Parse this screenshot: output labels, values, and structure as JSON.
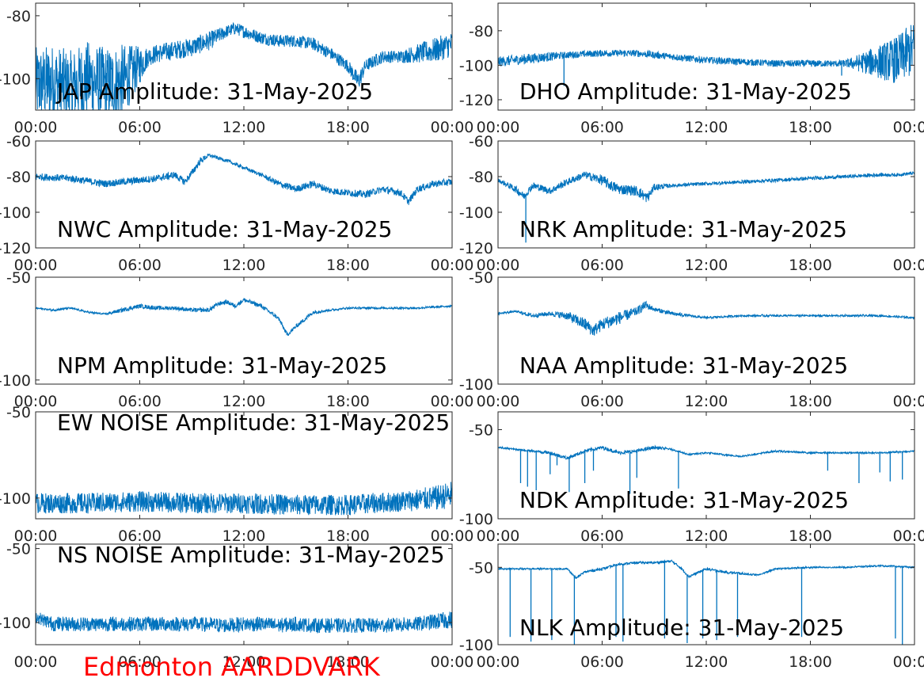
{
  "station_label": "Edmonton AARDDVARK",
  "station_color": "#ff0000",
  "series_color": "#0072bd",
  "chart_data": [
    {
      "type": "line",
      "title": "JAP Amplitude: 31-May-2025",
      "xticks": [
        "00:00",
        "06:00",
        "12:00",
        "18:00",
        "00:00"
      ],
      "yticks": [
        "-80",
        "-100"
      ],
      "yticks_values": [
        -80,
        -100
      ],
      "ylim": [
        -110,
        -76
      ],
      "trace": {
        "x_hours": [
          0,
          1,
          2,
          3,
          4,
          5,
          6.5,
          7,
          8,
          9,
          10,
          11,
          11.5,
          12,
          13,
          14,
          15,
          16,
          17,
          18,
          18.6,
          19,
          20,
          21,
          22,
          23,
          24
        ],
        "y": [
          -102,
          -101,
          -103,
          -100,
          -102,
          -101,
          -93,
          -92,
          -91,
          -90,
          -88,
          -85,
          -84,
          -85,
          -87,
          -88,
          -88,
          -89,
          -92,
          -96,
          -101,
          -96,
          -93,
          -93,
          -92,
          -91,
          -89
        ],
        "noise": [
          12,
          12,
          12,
          12,
          12,
          12,
          3,
          3,
          3,
          3,
          3,
          2,
          2,
          2,
          2,
          2,
          2,
          2,
          2,
          2,
          3,
          2,
          2,
          2,
          3,
          4,
          4
        ]
      },
      "spikes": []
    },
    {
      "type": "line",
      "title": "DHO Amplitude: 31-May-2025",
      "xticks": [
        "00:00",
        "06:00",
        "12:00",
        "18:00",
        "00:00"
      ],
      "yticks": [
        "-80",
        "-100",
        "-120"
      ],
      "yticks_values": [
        -80,
        -100,
        -120
      ],
      "ylim": [
        -126,
        -64
      ],
      "trace": {
        "x_hours": [
          0,
          2,
          4,
          6,
          8,
          10,
          12,
          14,
          16,
          18,
          20,
          22,
          23,
          24
        ],
        "y": [
          -98,
          -96,
          -94,
          -93,
          -93,
          -95,
          -97,
          -98,
          -99,
          -99,
          -99,
          -98,
          -97,
          -90
        ],
        "noise": [
          3,
          3,
          2,
          2,
          2,
          2,
          2,
          2,
          2,
          2,
          2,
          10,
          14,
          16
        ]
      },
      "spikes": [
        [
          3.8,
          -112
        ],
        [
          19.8,
          -106
        ]
      ]
    },
    {
      "type": "line",
      "title": "NWC Amplitude: 31-May-2025",
      "xticks": [
        "00:00",
        "06:00",
        "12:00",
        "18:00",
        "00:00"
      ],
      "yticks": [
        "-60",
        "-80",
        "-100",
        "-120"
      ],
      "yticks_values": [
        -60,
        -80,
        -100,
        -120
      ],
      "ylim": [
        -120,
        -60
      ],
      "trace": {
        "x_hours": [
          0,
          2,
          4,
          5,
          6,
          7,
          8,
          8.6,
          9,
          9.5,
          10,
          11,
          12,
          13,
          14,
          15,
          16,
          17,
          18,
          19,
          20,
          21,
          21.5,
          22,
          23,
          24
        ],
        "y": [
          -80,
          -81,
          -84,
          -83,
          -82,
          -81,
          -79,
          -83,
          -78,
          -71,
          -68,
          -71,
          -75,
          -79,
          -84,
          -87,
          -84,
          -88,
          -89,
          -90,
          -87,
          -89,
          -94,
          -87,
          -84,
          -83
        ],
        "noise": [
          2,
          2,
          2,
          2,
          2,
          2,
          2,
          2,
          2,
          2,
          1,
          1,
          1,
          1,
          2,
          2,
          2,
          2,
          2,
          2,
          2,
          2,
          2,
          2,
          2,
          2
        ]
      },
      "spikes": []
    },
    {
      "type": "line",
      "title": "NRK Amplitude: 31-May-2025",
      "xticks": [
        "00:00",
        "06:00",
        "12:00",
        "18:00",
        "00:00"
      ],
      "yticks": [
        "-60",
        "-80",
        "-100",
        "-120"
      ],
      "yticks_values": [
        -60,
        -80,
        -100,
        -120
      ],
      "ylim": [
        -120,
        -60
      ],
      "trace": {
        "x_hours": [
          0,
          1,
          1.5,
          2,
          3,
          4,
          5,
          6,
          6.5,
          7,
          8,
          8.6,
          9,
          10,
          12,
          14,
          16,
          18,
          20,
          22,
          23,
          24
        ],
        "y": [
          -82,
          -87,
          -91,
          -85,
          -88,
          -83,
          -79,
          -82,
          -85,
          -87,
          -88,
          -92,
          -86,
          -85,
          -84,
          -83,
          -82,
          -81,
          -80,
          -79,
          -79,
          -78
        ],
        "noise": [
          1,
          2,
          2,
          2,
          2,
          2,
          2,
          3,
          3,
          3,
          3,
          3,
          2,
          1,
          1,
          1,
          1,
          1,
          1,
          1,
          1,
          1
        ]
      },
      "spikes": [
        [
          1.6,
          -117
        ]
      ]
    },
    {
      "type": "line",
      "title": "NPM Amplitude: 31-May-2025",
      "xticks": [
        "00:00",
        "06:00",
        "12:00",
        "18:00",
        "00:00"
      ],
      "yticks": [
        "-50",
        "-100"
      ],
      "yticks_values": [
        -50,
        -100
      ],
      "ylim": [
        -102,
        -50
      ],
      "trace": {
        "x_hours": [
          0,
          1,
          2,
          3,
          4,
          5,
          6,
          7,
          8,
          9,
          10,
          10.5,
          11,
          11.5,
          12,
          13,
          14,
          14.5,
          15,
          16,
          17,
          18,
          20,
          22,
          24
        ],
        "y": [
          -65,
          -66,
          -65,
          -67,
          -68,
          -66,
          -64,
          -65,
          -65,
          -66,
          -66,
          -63,
          -62,
          -64,
          -61,
          -64,
          -70,
          -78,
          -74,
          -67,
          -66,
          -65,
          -65,
          -65,
          -64
        ],
        "noise": [
          0.5,
          0.5,
          0.5,
          0.5,
          0.5,
          1,
          1,
          1,
          1,
          1,
          1,
          1,
          1,
          1,
          1,
          1,
          1,
          1,
          1,
          1,
          0.5,
          0.5,
          0.5,
          0.5,
          0.5
        ]
      },
      "spikes": []
    },
    {
      "type": "line",
      "title": "NAA Amplitude: 31-May-2025",
      "xticks": [
        "00:00",
        "06:00",
        "12:00",
        "18:00",
        "00:00"
      ],
      "yticks": [
        "-50",
        "-100"
      ],
      "yticks_values": [
        -50,
        -100
      ],
      "ylim": [
        -100,
        -50
      ],
      "trace": {
        "x_hours": [
          0,
          1,
          2,
          3,
          4,
          5,
          5.5,
          6,
          7,
          8,
          8.5,
          9,
          10,
          12,
          14,
          16,
          18,
          20,
          22,
          24
        ],
        "y": [
          -67,
          -66,
          -68,
          -67,
          -68,
          -72,
          -75,
          -72,
          -69,
          -66,
          -63,
          -65,
          -67,
          -69,
          -68,
          -68,
          -68,
          -68,
          -68,
          -69
        ],
        "noise": [
          0.5,
          0.5,
          1,
          1,
          2,
          3,
          3,
          3,
          3,
          2,
          2,
          1,
          1,
          0.5,
          0.5,
          0.5,
          0.5,
          0.5,
          0.5,
          0.5
        ]
      },
      "spikes": []
    },
    {
      "type": "line",
      "title": "EW NOISE Amplitude: 31-May-2025",
      "xticks": [
        "00:00",
        "06:00",
        "12:00",
        "18:00",
        "00:00"
      ],
      "yticks": [
        "-50",
        "-100"
      ],
      "yticks_values": [
        -50,
        -100
      ],
      "ylim": [
        -112,
        -50
      ],
      "trace": {
        "x_hours": [
          0,
          3,
          6,
          9,
          12,
          15,
          18,
          21,
          23,
          24
        ],
        "y": [
          -103,
          -103,
          -102,
          -103,
          -103,
          -104,
          -104,
          -102,
          -100,
          -98
        ],
        "noise": [
          6,
          6,
          6,
          6,
          6,
          6,
          6,
          6,
          7,
          8
        ]
      },
      "spikes": []
    },
    {
      "type": "line",
      "title": "NDK Amplitude: 31-May-2025",
      "xticks": [
        "00:00",
        "06:00",
        "12:00",
        "18:00",
        "00:00"
      ],
      "yticks": [
        "-50",
        "-100"
      ],
      "yticks_values": [
        -50,
        -100
      ],
      "ylim": [
        -100,
        -40
      ],
      "trace": {
        "x_hours": [
          0,
          1,
          2,
          3,
          4,
          5,
          6,
          7,
          8,
          9,
          10,
          11,
          12,
          14,
          16,
          18,
          20,
          22,
          24
        ],
        "y": [
          -60,
          -61,
          -62,
          -63,
          -66,
          -62,
          -60,
          -63,
          -62,
          -60,
          -61,
          -64,
          -63,
          -65,
          -62,
          -63,
          -63,
          -63,
          -62
        ],
        "noise": [
          0.5,
          0.5,
          0.5,
          1,
          1,
          1,
          1,
          1,
          1,
          1,
          0.5,
          0.5,
          0.5,
          0.5,
          0.5,
          0.5,
          0.5,
          0.5,
          0.5
        ]
      },
      "spikes": [
        [
          1.3,
          -80
        ],
        [
          1.7,
          -82
        ],
        [
          2.2,
          -84
        ],
        [
          3.0,
          -75
        ],
        [
          3.4,
          -70
        ],
        [
          4.1,
          -85
        ],
        [
          5.0,
          -80
        ],
        [
          5.5,
          -73
        ],
        [
          7.6,
          -86
        ],
        [
          8.0,
          -77
        ],
        [
          10.4,
          -83
        ],
        [
          19.0,
          -73
        ],
        [
          20.8,
          -80
        ],
        [
          22.0,
          -74
        ],
        [
          22.6,
          -79
        ],
        [
          23.3,
          -78
        ]
      ]
    },
    {
      "type": "line",
      "title": "NS NOISE Amplitude: 31-May-2025",
      "xticks": [
        "00:00",
        "06:00",
        "12:00",
        "18:00",
        "00:00"
      ],
      "yticks": [
        "-50",
        "-100"
      ],
      "yticks_values": [
        -50,
        -100
      ],
      "ylim": [
        -115,
        -47
      ],
      "trace": {
        "x_hours": [
          0,
          1,
          3,
          5,
          7,
          9,
          11,
          12,
          13,
          14,
          15,
          16,
          18,
          20,
          22,
          24
        ],
        "y": [
          -96,
          -101,
          -101,
          -101,
          -101,
          -101,
          -102,
          -101,
          -101,
          -102,
          -101,
          -102,
          -102,
          -102,
          -101,
          -98
        ],
        "noise": [
          4,
          5,
          5,
          5,
          5,
          5,
          5,
          5,
          5,
          5,
          5,
          5,
          5,
          5,
          5,
          6
        ]
      },
      "spikes": []
    },
    {
      "type": "line",
      "title": "NLK Amplitude: 31-May-2025",
      "xticks": [
        "00:00",
        "06:00",
        "12:00",
        "18:00",
        "00:00"
      ],
      "yticks": [
        "-50",
        "-100"
      ],
      "yticks_values": [
        -50,
        -100
      ],
      "ylim": [
        -100,
        -35
      ],
      "trace": {
        "x_hours": [
          0,
          1,
          2,
          3,
          4,
          4.5,
          5,
          6,
          7,
          8,
          9,
          10,
          10.5,
          11,
          12,
          13,
          14,
          15,
          16,
          18,
          20,
          22,
          24
        ],
        "y": [
          -51,
          -51,
          -51,
          -51,
          -51,
          -57,
          -53,
          -51,
          -48,
          -47,
          -47,
          -46,
          -50,
          -56,
          -51,
          -53,
          -54,
          -55,
          -51,
          -50,
          -50,
          -49,
          -50
        ],
        "noise": [
          0.5,
          0.5,
          0.5,
          0.5,
          0.5,
          0.8,
          0.8,
          0.8,
          0.8,
          0.8,
          0.8,
          0.8,
          0.8,
          0.8,
          0.8,
          0.8,
          0.8,
          0.5,
          0.5,
          0.5,
          0.5,
          0.5,
          0.5
        ]
      },
      "spikes": [
        [
          0.7,
          -95
        ],
        [
          1.9,
          -98
        ],
        [
          3.1,
          -97
        ],
        [
          4.4,
          -100
        ],
        [
          6.8,
          -95
        ],
        [
          7.2,
          -98
        ],
        [
          9.6,
          -96
        ],
        [
          10.9,
          -99
        ],
        [
          11.8,
          -96
        ],
        [
          12.6,
          -97
        ],
        [
          13.8,
          -95
        ],
        [
          17.5,
          -95
        ],
        [
          22.9,
          -96
        ],
        [
          23.3,
          -100
        ]
      ]
    }
  ]
}
